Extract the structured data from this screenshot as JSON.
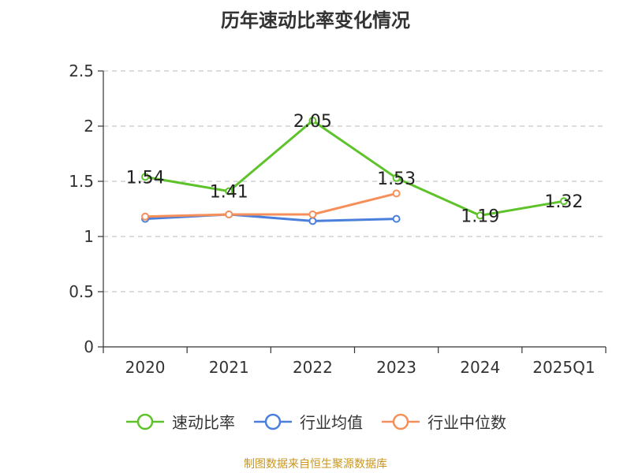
{
  "chart_data": {
    "type": "line",
    "title": "历年速动比率变化情况",
    "categories": [
      "2020",
      "2021",
      "2022",
      "2023",
      "2024",
      "2025Q1"
    ],
    "yticks": [
      "0",
      "0.5",
      "1",
      "1.5",
      "2",
      "2.5"
    ],
    "ylim": [
      0,
      2.5
    ],
    "grid": true,
    "legend_position": "bottom",
    "series": [
      {
        "name": "速动比率",
        "color": "#5ec32b",
        "values": [
          1.54,
          1.41,
          2.05,
          1.53,
          1.19,
          1.32
        ],
        "labels": [
          "1.54",
          "1.41",
          "2.05",
          "1.53",
          "1.19",
          "1.32"
        ]
      },
      {
        "name": "行业均值",
        "color": "#4a7fdc",
        "values": [
          1.16,
          1.2,
          1.14,
          1.16,
          null,
          null
        ]
      },
      {
        "name": "行业中位数",
        "color": "#f5905a",
        "values": [
          1.18,
          1.2,
          1.2,
          1.39,
          null,
          null
        ]
      }
    ]
  },
  "source_note": "制图数据来自恒生聚源数据库",
  "source_color": "#c8961e"
}
